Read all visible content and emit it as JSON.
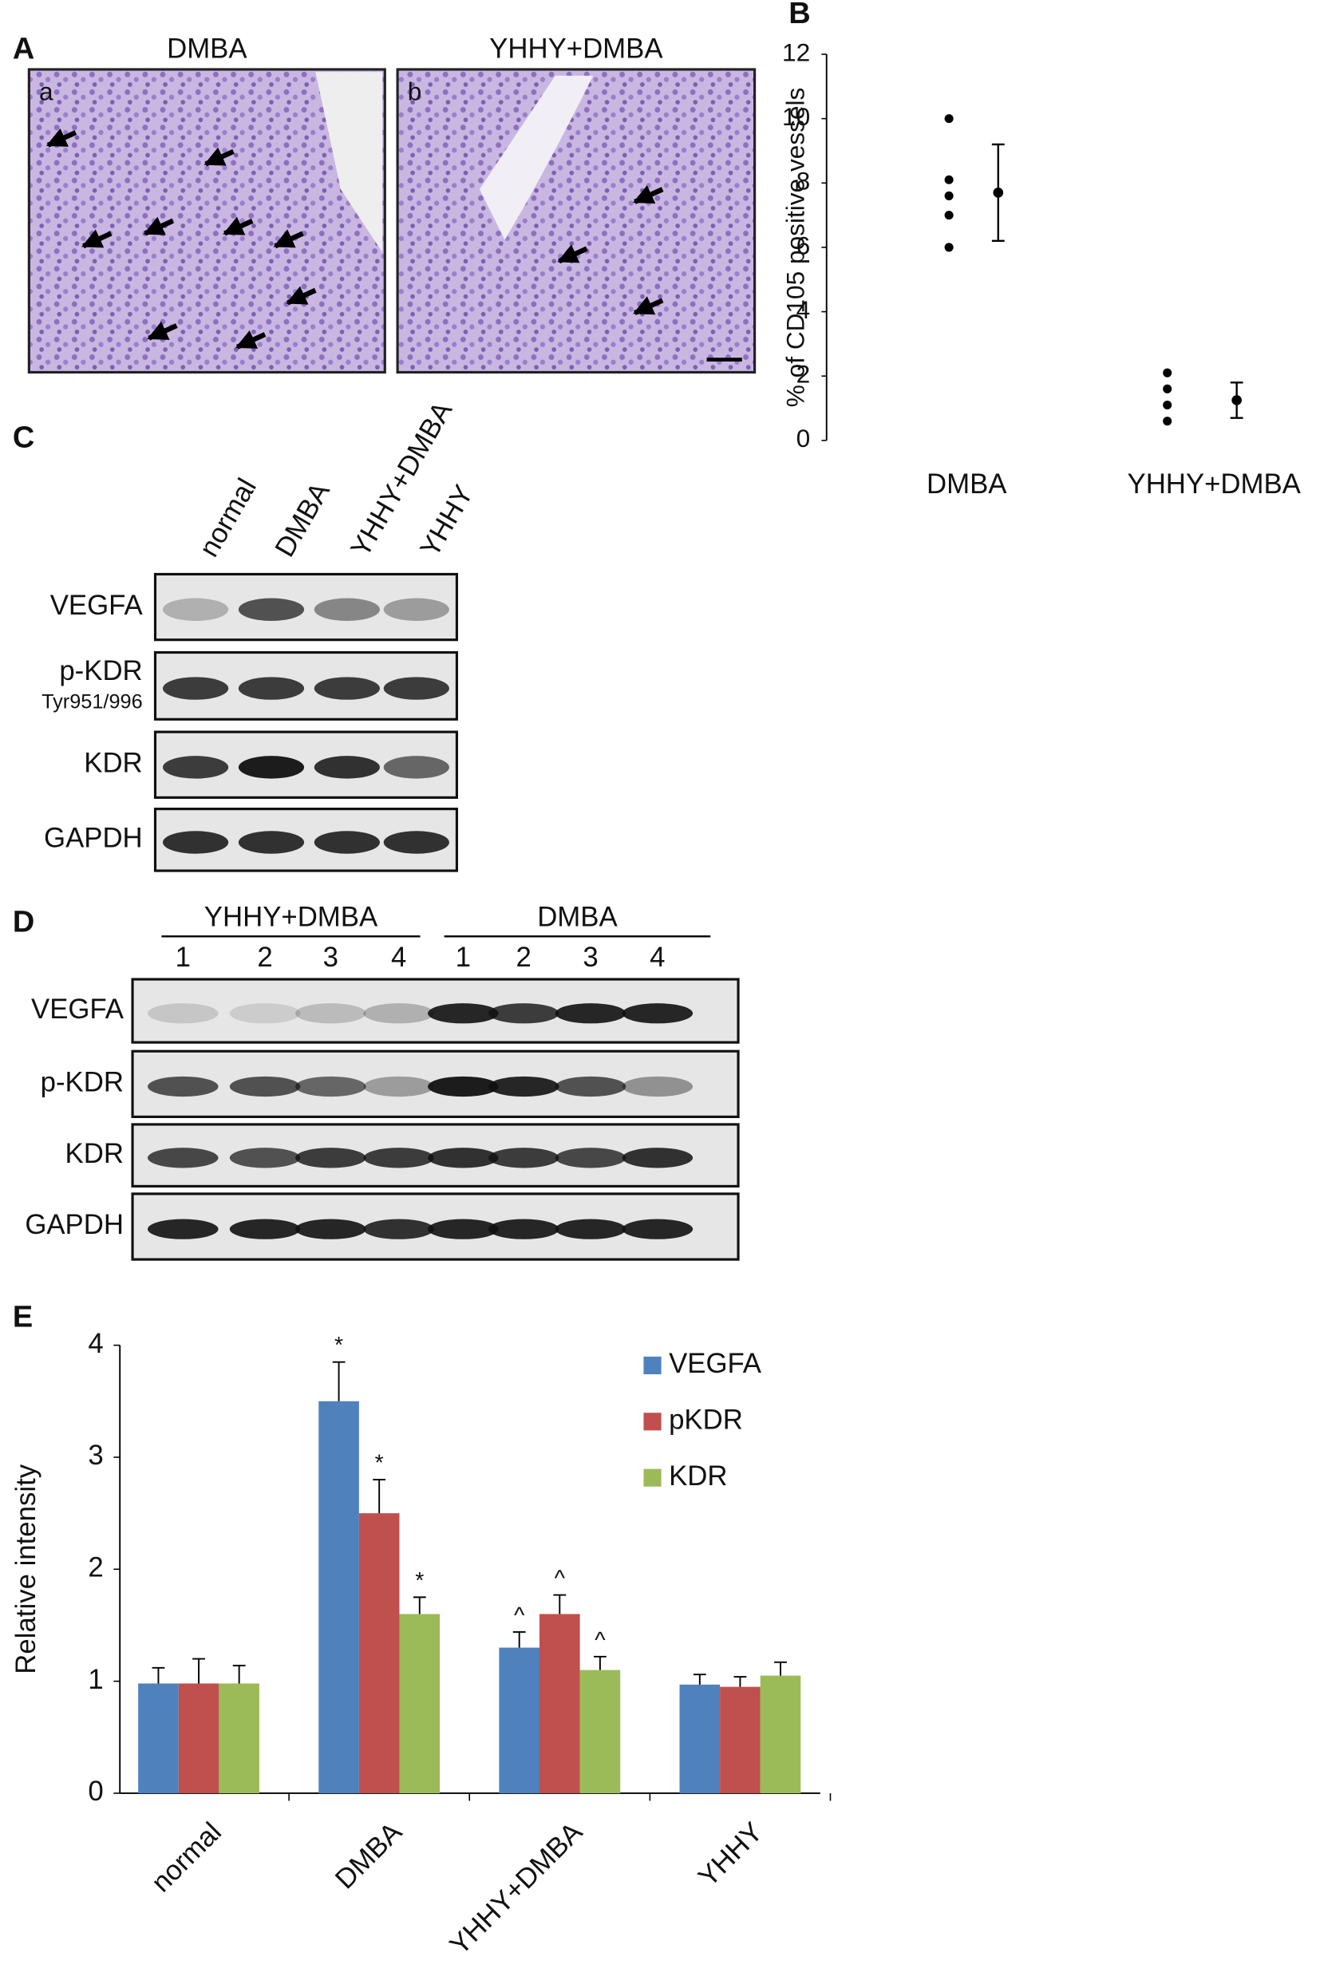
{
  "panel_labels": [
    "A",
    "B",
    "C",
    "D",
    "E"
  ],
  "micrographs": [
    {
      "title": "DMBA",
      "label": "a"
    },
    {
      "title": "YHHY+DMBA",
      "label": "b"
    }
  ],
  "blot_c": {
    "lanes": [
      "normal",
      "DMBA",
      "YHHY+DMBA",
      "YHHY"
    ],
    "rows": [
      "VEGFA",
      "p-KDR",
      "KDR",
      "GAPDH"
    ],
    "row_sublabel": "Tyr951/996"
  },
  "blot_d": {
    "groups": [
      "YHHY+DMBA",
      "DMBA"
    ],
    "lanes": [
      "1",
      "2",
      "3",
      "4",
      "1",
      "2",
      "3",
      "4"
    ],
    "rows": [
      "VEGFA",
      "p-KDR",
      "KDR",
      "GAPDH"
    ]
  },
  "chart_data": [
    {
      "type": "dot",
      "ylabel": "% of CD105 positive vessels",
      "categories": [
        "DMBA",
        "YHHY+DMBA"
      ],
      "points": [
        [
          10,
          8.1,
          7.6,
          7,
          6
        ],
        [
          2.1,
          1.6,
          1.1,
          0.6
        ]
      ],
      "means": [
        7.7,
        1.25
      ],
      "errors": [
        1.5,
        0.55
      ],
      "ylim": [
        0,
        12
      ],
      "yticks": [
        0,
        2,
        4,
        6,
        8,
        10,
        12
      ],
      "color": "#000000"
    },
    {
      "type": "bar",
      "ylabel": "Relative intensity",
      "categories": [
        "normal",
        "DMBA",
        "YHHY+DMBA",
        "YHHY"
      ],
      "series": [
        {
          "name": "VEGFA",
          "color": "#4f81bd",
          "values": [
            0.98,
            3.5,
            1.3,
            0.97
          ],
          "errors": [
            0.14,
            0.35,
            0.14,
            0.09
          ],
          "annotations": [
            null,
            "*",
            "^",
            null
          ]
        },
        {
          "name": "pKDR",
          "color": "#c0504d",
          "values": [
            0.98,
            2.5,
            1.6,
            0.95
          ],
          "errors": [
            0.22,
            0.3,
            0.17,
            0.09
          ],
          "annotations": [
            null,
            "*",
            "^",
            null
          ]
        },
        {
          "name": "KDR",
          "color": "#9bbb59",
          "values": [
            0.98,
            1.6,
            1.1,
            1.05
          ],
          "errors": [
            0.16,
            0.15,
            0.12,
            0.12
          ],
          "annotations": [
            null,
            "*",
            "^",
            null
          ]
        }
      ],
      "ylim": [
        0,
        4
      ],
      "yticks": [
        0,
        1,
        2,
        3,
        4
      ],
      "legend": "upper right"
    }
  ]
}
